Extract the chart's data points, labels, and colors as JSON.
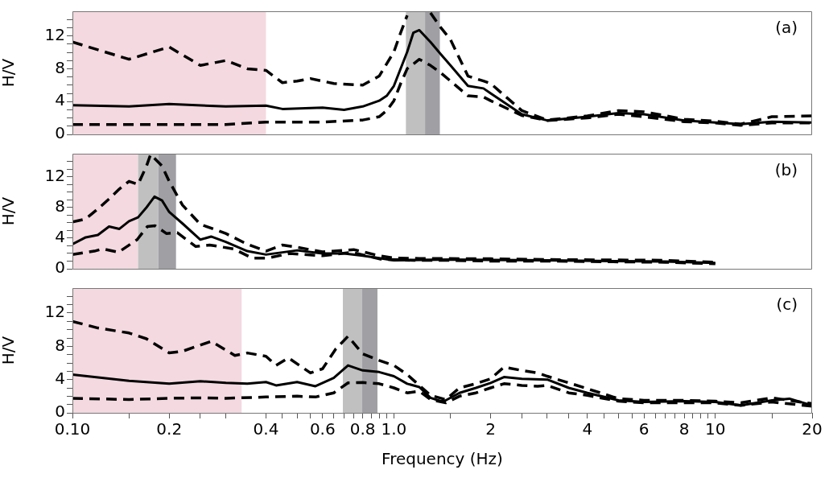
{
  "chart_data": [
    {
      "type": "line",
      "log": "x",
      "ylabel": "H/V",
      "annotations": [
        "(a)"
      ],
      "tick_labels": "y",
      "xlim": [
        0.1,
        20
      ],
      "ylim": [
        0,
        15
      ],
      "yticks": [
        0,
        {
          "value": 1,
          "label": null
        },
        {
          "value": 2,
          "label": null
        },
        {
          "value": 3,
          "label": null
        },
        4,
        {
          "value": 5,
          "label": null
        },
        {
          "value": 6,
          "label": null
        },
        {
          "value": 7,
          "label": null
        },
        8,
        {
          "value": 9,
          "label": null
        },
        {
          "value": 10,
          "label": null
        },
        {
          "value": 11,
          "label": null
        },
        12,
        {
          "value": 13,
          "label": null
        },
        {
          "value": 14,
          "label": null
        }
      ],
      "bands": [
        {
          "axis": "x",
          "from": 0.1,
          "to": 0.4,
          "color": "#f4d9e1"
        },
        {
          "axis": "x",
          "from": 1.09,
          "to": 1.25,
          "color": "#c0c0c0"
        },
        {
          "axis": "x",
          "from": 1.25,
          "to": 1.39,
          "color": "#a0a0a4"
        }
      ],
      "series": [
        {
          "color": "#000000",
          "line_style": "solid",
          "x": [
            0.1,
            0.15,
            0.2,
            0.3,
            0.4,
            0.45,
            0.6,
            0.7,
            0.8,
            0.9,
            0.95,
            1.0,
            1.1,
            1.15,
            1.2,
            1.3,
            1.4,
            1.5,
            1.7,
            1.9,
            2,
            2.5,
            3,
            4,
            5,
            6,
            8,
            10,
            12,
            15,
            20
          ],
          "values": [
            3.55,
            3.4,
            3.7,
            3.4,
            3.5,
            3.1,
            3.25,
            3.0,
            3.4,
            4.1,
            4.7,
            5.9,
            10.05,
            12.4,
            12.7,
            11.25,
            9.75,
            8.4,
            5.9,
            5.6,
            5.0,
            2.45,
            1.7,
            2.15,
            2.6,
            2.45,
            1.7,
            1.45,
            1.25,
            1.55,
            1.45
          ]
        },
        {
          "color": "#000000",
          "line_style": "dashed",
          "x": [
            0.1,
            0.15,
            0.2,
            0.25,
            0.3,
            0.35,
            0.4,
            0.45,
            0.5,
            0.55,
            0.65,
            0.8,
            0.9,
            1.0,
            1.05,
            1.1,
            1.15,
            1.2,
            1.25,
            1.3,
            1.4,
            1.5,
            1.7,
            1.9,
            2,
            2.5,
            3,
            4,
            5,
            6,
            8,
            10,
            12,
            15,
            20
          ],
          "values": [
            11.25,
            9.15,
            10.65,
            8.4,
            9.0,
            8.0,
            7.8,
            6.3,
            6.5,
            6.8,
            6.2,
            6.0,
            7.1,
            10.05,
            12.4,
            14.5,
            null,
            null,
            null,
            14.8,
            13.0,
            11.55,
            7.1,
            6.5,
            6.2,
            2.9,
            1.75,
            2.25,
            2.9,
            2.75,
            1.85,
            1.6,
            1.25,
            2.15,
            2.25
          ]
        },
        {
          "color": "#000000",
          "line_style": "dashed",
          "x": [
            0.1,
            0.2,
            0.3,
            0.4,
            0.6,
            0.8,
            0.9,
            0.95,
            1.0,
            1.05,
            1.1,
            1.2,
            1.3,
            1.4,
            1.5,
            1.7,
            1.9,
            2,
            2.5,
            3,
            4,
            5,
            6,
            8,
            10,
            12,
            15,
            20
          ],
          "values": [
            1.2,
            1.2,
            1.2,
            1.5,
            1.5,
            1.75,
            2.15,
            2.9,
            4.1,
            6.2,
            8.0,
            9.15,
            8.4,
            7.5,
            6.5,
            4.7,
            4.55,
            4.1,
            2.3,
            1.7,
            2.0,
            2.45,
            2.15,
            1.55,
            1.4,
            1.1,
            1.4,
            1.4
          ]
        }
      ]
    },
    {
      "type": "line",
      "log": "x",
      "ylabel": "H/V",
      "annotations": [
        "(b)"
      ],
      "tick_labels": "y",
      "xlim": [
        0.1,
        20
      ],
      "ylim": [
        0,
        15
      ],
      "yticks": [
        0,
        {
          "value": 1,
          "label": null
        },
        {
          "value": 2,
          "label": null
        },
        {
          "value": 3,
          "label": null
        },
        4,
        {
          "value": 5,
          "label": null
        },
        {
          "value": 6,
          "label": null
        },
        {
          "value": 7,
          "label": null
        },
        8,
        {
          "value": 9,
          "label": null
        },
        {
          "value": 10,
          "label": null
        },
        {
          "value": 11,
          "label": null
        },
        12,
        {
          "value": 13,
          "label": null
        },
        {
          "value": 14,
          "label": null
        }
      ],
      "bands": [
        {
          "axis": "x",
          "from": 0.1,
          "to": 0.16,
          "color": "#f4d9e1"
        },
        {
          "axis": "x",
          "from": 0.16,
          "to": 0.185,
          "color": "#c0c0c0"
        },
        {
          "axis": "x",
          "from": 0.185,
          "to": 0.21,
          "color": "#a0a0a4"
        }
      ],
      "series": [
        {
          "color": "#000000",
          "line_style": "solid",
          "x": [
            0.1,
            0.11,
            0.12,
            0.13,
            0.14,
            0.15,
            0.16,
            0.17,
            0.18,
            0.19,
            0.2,
            0.22,
            0.25,
            0.27,
            0.3,
            0.35,
            0.4,
            0.5,
            0.6,
            0.7,
            0.8,
            0.9,
            1.0,
            1.5,
            2,
            3,
            5,
            7,
            10
          ],
          "values": [
            3.2,
            4.1,
            4.4,
            5.5,
            5.2,
            6.2,
            6.7,
            8.0,
            9.4,
            8.9,
            7.4,
            5.9,
            3.8,
            4.2,
            3.5,
            2.3,
            1.85,
            2.4,
            2.0,
            2.0,
            1.7,
            1.4,
            1.1,
            1.2,
            1.15,
            1.1,
            1.0,
            0.95,
            0.75
          ]
        },
        {
          "color": "#000000",
          "line_style": "dashed",
          "x": [
            0.1,
            0.11,
            0.12,
            0.13,
            0.14,
            0.15,
            0.16,
            0.17,
            0.175,
            0.19,
            0.2,
            0.22,
            0.25,
            0.3,
            0.35,
            0.4,
            0.45,
            0.5,
            0.6,
            0.75,
            0.9,
            1.0,
            1.2,
            2,
            3,
            5,
            7,
            10
          ],
          "values": [
            6.1,
            6.5,
            7.8,
            9.1,
            10.4,
            11.4,
            11.0,
            13.4,
            14.9,
            13.4,
            11.4,
            8.3,
            5.8,
            4.6,
            3.2,
            2.3,
            3.1,
            2.8,
            2.2,
            2.5,
            1.7,
            1.4,
            1.35,
            1.3,
            1.2,
            1.15,
            1.1,
            0.85
          ]
        },
        {
          "color": "#000000",
          "line_style": "dashed",
          "x": [
            0.1,
            0.117,
            0.124,
            0.139,
            0.159,
            0.171,
            0.181,
            0.196,
            0.212,
            0.242,
            0.267,
            0.317,
            0.362,
            0.406,
            0.474,
            0.6,
            0.74,
            0.91,
            1.15,
            1.5,
            2,
            3,
            5,
            7,
            10
          ],
          "values": [
            1.85,
            2.3,
            2.6,
            2.15,
            3.8,
            5.5,
            5.6,
            4.6,
            4.7,
            2.9,
            3.1,
            2.6,
            1.4,
            1.4,
            2.0,
            1.7,
            2.15,
            1.25,
            1.1,
            1.1,
            1.0,
            1.0,
            0.9,
            0.85,
            0.65
          ]
        }
      ]
    },
    {
      "type": "line",
      "log": "x",
      "ylabel": "H/V",
      "xlabel": "Frequency (Hz)",
      "annotations": [
        "(c)"
      ],
      "xlim": [
        0.1,
        20
      ],
      "ylim": [
        0,
        15
      ],
      "xticks": [
        {
          "value": 0.1,
          "label": "0.10"
        },
        {
          "value": 0.15,
          "label": null
        },
        0.2,
        {
          "value": 0.25,
          "label": null
        },
        {
          "value": 0.3,
          "label": null
        },
        0.4,
        {
          "value": 0.45,
          "label": null
        },
        {
          "value": 0.5,
          "label": null
        },
        {
          "value": 0.55,
          "label": null
        },
        0.6,
        {
          "value": 0.65,
          "label": null
        },
        {
          "value": 0.7,
          "label": null
        },
        {
          "value": 0.75,
          "label": null
        },
        0.8,
        {
          "value": 0.85,
          "label": null
        },
        {
          "value": 0.9,
          "label": null
        },
        {
          "value": 0.95,
          "label": null
        },
        {
          "value": 1,
          "label": "1.0"
        },
        {
          "value": 1.5,
          "label": null
        },
        2,
        {
          "value": 2.5,
          "label": null
        },
        {
          "value": 3,
          "label": null
        },
        {
          "value": 3.5,
          "label": null
        },
        4,
        {
          "value": 4.5,
          "label": null
        },
        {
          "value": 5,
          "label": null
        },
        {
          "value": 5.5,
          "label": null
        },
        6,
        {
          "value": 6.5,
          "label": null
        },
        {
          "value": 7,
          "label": null
        },
        {
          "value": 7.5,
          "label": null
        },
        8,
        {
          "value": 8.5,
          "label": null
        },
        {
          "value": 9,
          "label": null
        },
        {
          "value": 9.5,
          "label": null
        },
        10,
        {
          "value": 15,
          "label": null
        },
        20
      ],
      "yticks": [
        0,
        {
          "value": 1,
          "label": null
        },
        {
          "value": 2,
          "label": null
        },
        {
          "value": 3,
          "label": null
        },
        4,
        {
          "value": 5,
          "label": null
        },
        {
          "value": 6,
          "label": null
        },
        {
          "value": 7,
          "label": null
        },
        8,
        {
          "value": 9,
          "label": null
        },
        {
          "value": 10,
          "label": null
        },
        {
          "value": 11,
          "label": null
        },
        12,
        {
          "value": 13,
          "label": null
        },
        {
          "value": 14,
          "label": null
        }
      ],
      "bands": [
        {
          "axis": "x",
          "from": 0.1,
          "to": 0.336,
          "color": "#f4d9e1"
        },
        {
          "axis": "x",
          "from": 0.694,
          "to": 0.797,
          "color": "#c0c0c0"
        },
        {
          "axis": "x",
          "from": 0.797,
          "to": 0.889,
          "color": "#a0a0a4"
        }
      ],
      "series": [
        {
          "color": "#000000",
          "line_style": "solid",
          "x": [
            0.1,
            0.15,
            0.2,
            0.25,
            0.3,
            0.35,
            0.4,
            0.43,
            0.5,
            0.57,
            0.65,
            0.72,
            0.8,
            0.9,
            1.0,
            1.1,
            1.2,
            1.3,
            1.4,
            1.45,
            1.6,
            1.8,
            2.0,
            2.2,
            2.5,
            3,
            3.5,
            4,
            5,
            6,
            8,
            10,
            12,
            15,
            17,
            20
          ],
          "values": [
            4.6,
            3.85,
            3.5,
            3.8,
            3.6,
            3.5,
            3.7,
            3.3,
            3.7,
            3.2,
            4.2,
            5.7,
            5.1,
            4.9,
            4.4,
            3.5,
            3.1,
            1.8,
            1.4,
            1.5,
            2.4,
            3.0,
            3.6,
            4.3,
            4.1,
            4.0,
            3.0,
            2.4,
            1.5,
            1.3,
            1.4,
            1.3,
            0.9,
            1.5,
            1.7,
            0.9
          ]
        },
        {
          "color": "#000000",
          "line_style": "dashed",
          "x": [
            0.1,
            0.12,
            0.15,
            0.17,
            0.2,
            0.22,
            0.27,
            0.32,
            0.35,
            0.4,
            0.43,
            0.47,
            0.55,
            0.6,
            0.66,
            0.72,
            0.8,
            0.9,
            1.0,
            1.1,
            1.2,
            1.3,
            1.45,
            1.6,
            1.8,
            2.0,
            2.2,
            2.5,
            2.8,
            3.0,
            3.5,
            4,
            5,
            6,
            8,
            10,
            12,
            15,
            20
          ],
          "values": [
            11.0,
            10.2,
            9.6,
            8.9,
            7.2,
            7.4,
            8.6,
            6.9,
            7.2,
            6.8,
            5.7,
            6.6,
            4.8,
            5.3,
            7.7,
            9.2,
            7.1,
            6.3,
            5.7,
            4.6,
            3.3,
            2.1,
            1.6,
            3.0,
            3.5,
            4.1,
            5.5,
            5.1,
            4.8,
            4.4,
            3.6,
            2.9,
            1.7,
            1.5,
            1.5,
            1.4,
            1.2,
            1.8,
            1.1
          ]
        },
        {
          "color": "#000000",
          "line_style": "dashed",
          "x": [
            0.1,
            0.15,
            0.2,
            0.25,
            0.3,
            0.4,
            0.5,
            0.57,
            0.65,
            0.72,
            0.8,
            0.9,
            1.0,
            1.1,
            1.2,
            1.3,
            1.45,
            1.6,
            1.8,
            2.0,
            2.2,
            2.5,
            2.8,
            3.0,
            3.5,
            4,
            5,
            6,
            8,
            10,
            12,
            15,
            20
          ],
          "values": [
            1.75,
            1.6,
            1.75,
            1.8,
            1.75,
            1.9,
            2.0,
            1.9,
            2.4,
            3.6,
            3.65,
            3.5,
            3.0,
            2.4,
            2.6,
            1.6,
            1.2,
            2.0,
            2.4,
            3.0,
            3.5,
            3.3,
            3.2,
            3.3,
            2.4,
            2.1,
            1.4,
            1.2,
            1.2,
            1.2,
            0.9,
            1.3,
            0.8
          ]
        }
      ]
    }
  ]
}
